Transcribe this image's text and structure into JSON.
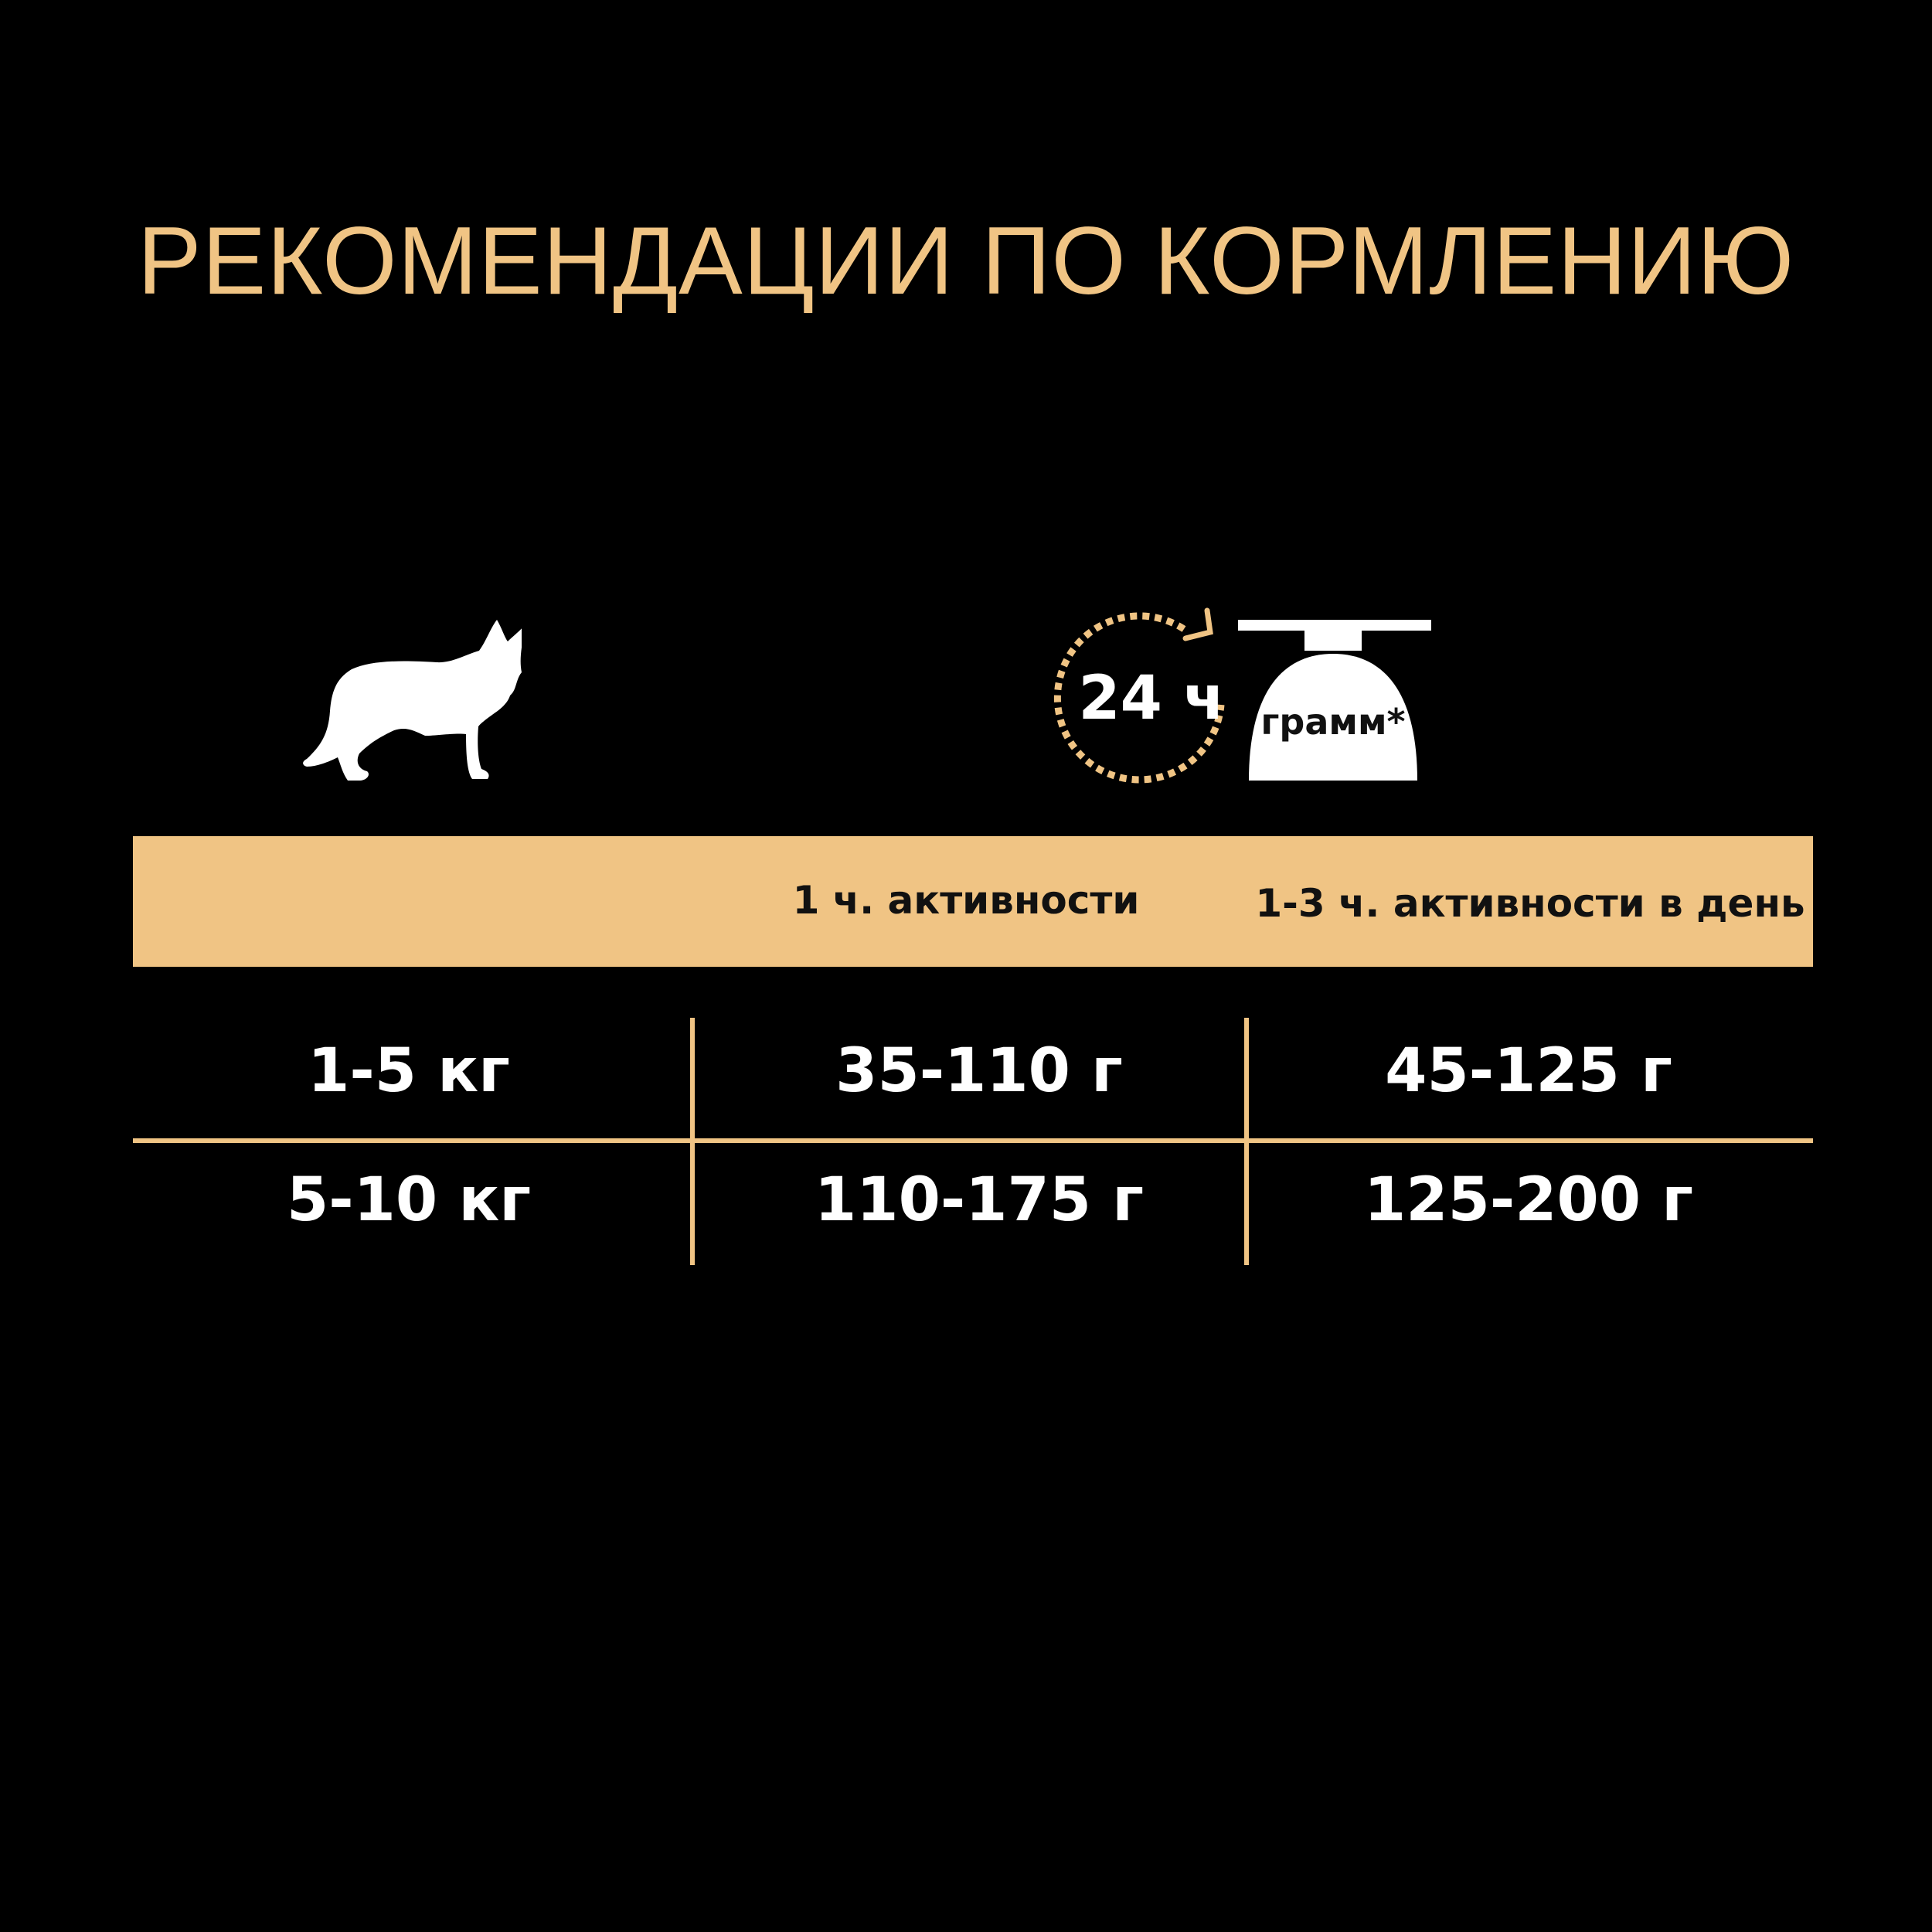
{
  "title": "РЕКОМЕНДАЦИИ ПО КОРМЛЕНИЮ",
  "icons": {
    "dog": "dog-silhouette-icon",
    "clock": "24h-clock-icon",
    "clock_label": "24 ч",
    "scale": "food-scale-icon",
    "scale_label": "грамм*"
  },
  "colors": {
    "accent": "#F0C484",
    "background": "#000000",
    "text": "#FFFFFF"
  },
  "table": {
    "headers": [
      "",
      "1 ч. активности",
      "1-3 ч. активности в день"
    ],
    "rows": [
      [
        "1-5 кг",
        "35-110 г",
        "45-125 г"
      ],
      [
        "5-10 кг",
        "110-175 г",
        "125-200 г"
      ]
    ]
  }
}
